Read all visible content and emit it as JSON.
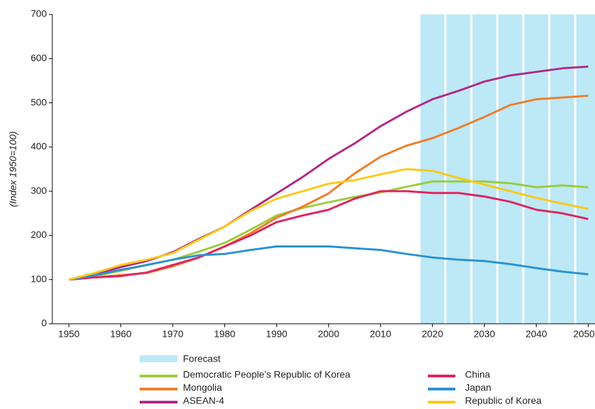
{
  "chart_data": {
    "type": "line",
    "y_label": "(Index 1950=100)",
    "x": [
      1950,
      1955,
      1960,
      1965,
      1970,
      1975,
      1980,
      1985,
      1990,
      1995,
      2000,
      2005,
      2010,
      2015,
      2020,
      2025,
      2030,
      2035,
      2040,
      2045,
      2050
    ],
    "xlim": [
      1946.8,
      2051.3
    ],
    "xticks": [
      1950,
      1960,
      1970,
      1980,
      1990,
      2000,
      2010,
      2020,
      2030,
      2040,
      2050
    ],
    "ylim": [
      0,
      700
    ],
    "yticks": [
      0,
      100,
      200,
      300,
      400,
      500,
      600,
      700
    ],
    "forecast": {
      "label": "Forecast",
      "color": "#bde8f6",
      "x": [
        2020,
        2025,
        2030,
        2035,
        2040,
        2045,
        2050
      ],
      "width": 5
    },
    "series": [
      {
        "name": "Democratic People’s Republic of Korea",
        "color": "#9bcc3c",
        "values": [
          100,
          108,
          120,
          133,
          145,
          163,
          183,
          213,
          245,
          262,
          275,
          287,
          297,
          310,
          322,
          322,
          322,
          318,
          309,
          313,
          309
        ]
      },
      {
        "name": "Mongolia",
        "color": "#ee7d2b",
        "values": [
          100,
          105,
          110,
          115,
          130,
          150,
          175,
          205,
          240,
          265,
          295,
          340,
          378,
          403,
          420,
          443,
          468,
          495,
          508,
          512,
          516
        ]
      },
      {
        "name": "ASEAN-4",
        "color": "#b02a86",
        "values": [
          100,
          112,
          128,
          142,
          162,
          192,
          220,
          258,
          295,
          332,
          373,
          408,
          447,
          480,
          508,
          527,
          548,
          562,
          570,
          578,
          582
        ]
      },
      {
        "name": "China",
        "color": "#e0245e",
        "values": [
          100,
          105,
          108,
          116,
          133,
          150,
          175,
          200,
          230,
          245,
          258,
          283,
          300,
          300,
          296,
          296,
          288,
          276,
          258,
          250,
          237
        ]
      },
      {
        "name": "Japan",
        "color": "#2a92d0",
        "values": [
          100,
          110,
          122,
          133,
          145,
          155,
          158,
          167,
          175,
          175,
          175,
          171,
          167,
          158,
          150,
          145,
          142,
          135,
          126,
          118,
          112
        ]
      },
      {
        "name": "Republic of Korea",
        "color": "#fcc918",
        "values": [
          100,
          115,
          133,
          145,
          160,
          190,
          220,
          255,
          283,
          300,
          317,
          325,
          338,
          350,
          346,
          330,
          315,
          300,
          285,
          272,
          260
        ]
      }
    ]
  }
}
